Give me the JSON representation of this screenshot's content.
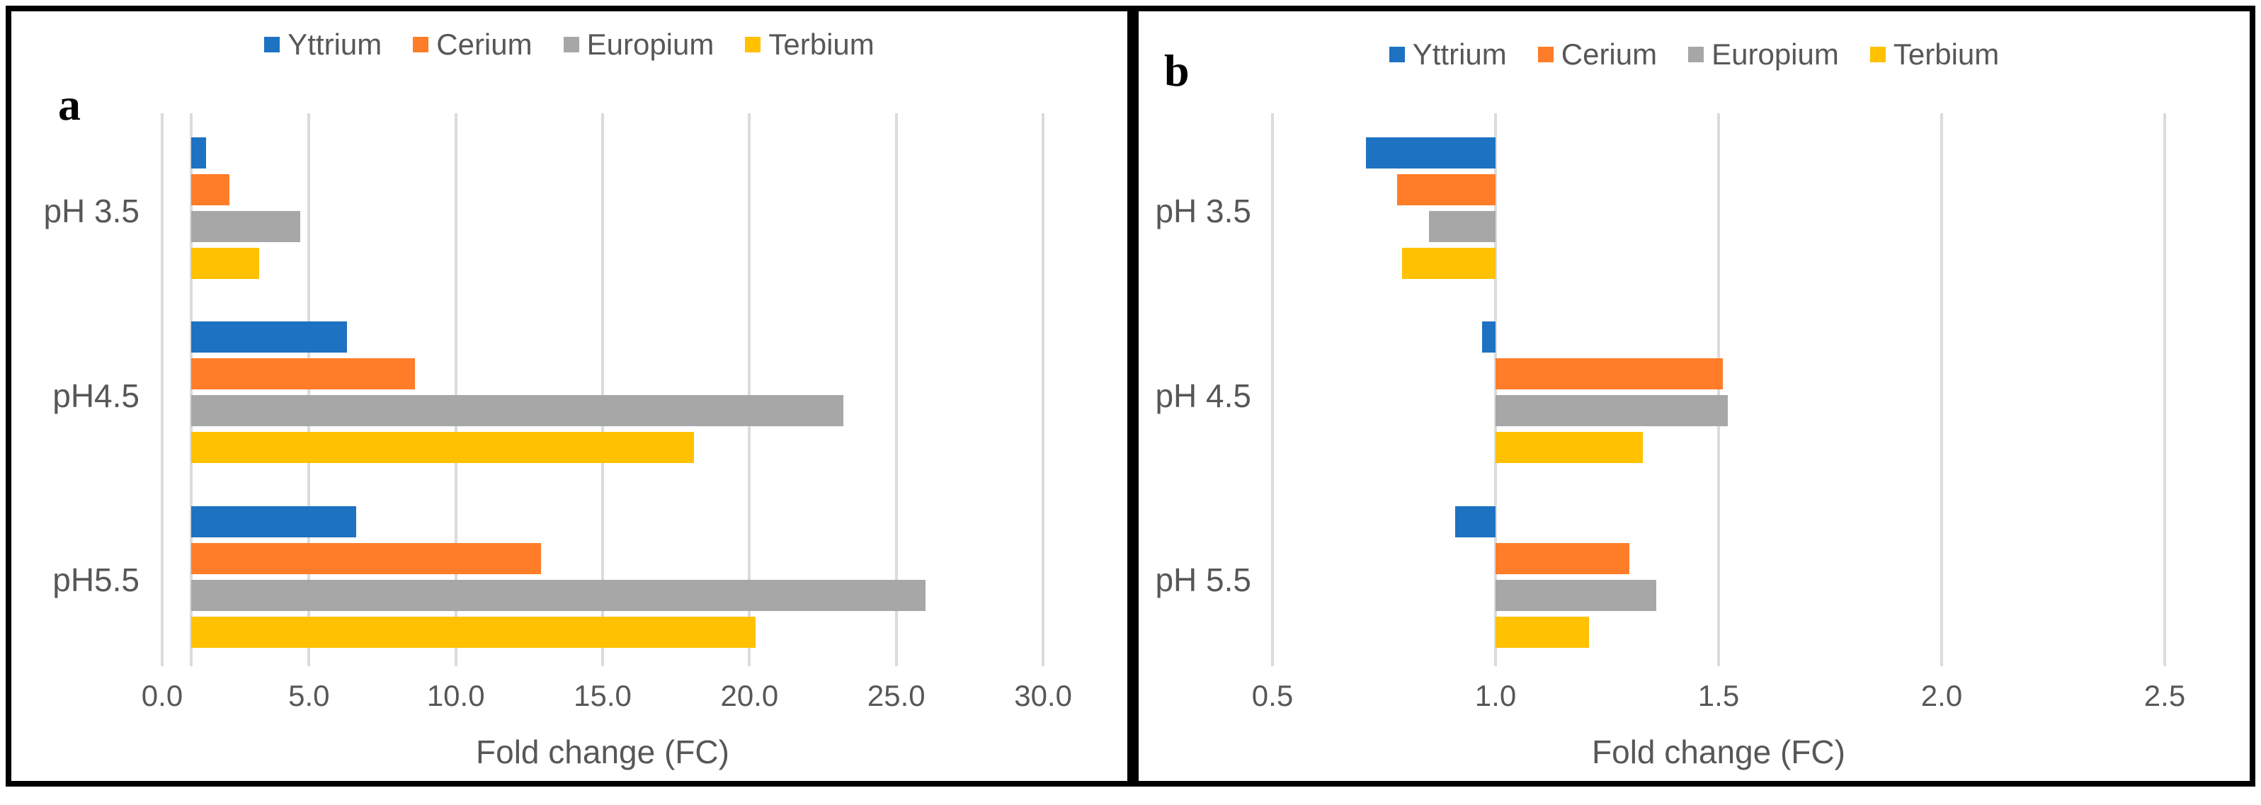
{
  "colors": {
    "yttrium": "#1E72C2",
    "cerium": "#FF7D29",
    "europium": "#A7A7A7",
    "terbium": "#FFC100",
    "gridline": "#DBDBDB",
    "axis_text": "#575757",
    "panel_border": "#000000"
  },
  "chart_data": [
    {
      "panel": "a",
      "type": "bar",
      "orientation": "horizontal",
      "title": "",
      "xlabel": "Fold change (FC)",
      "ylabel": "",
      "grid": true,
      "legend_position": "top",
      "bar_baseline": 1.0,
      "xlim": [
        0.0,
        30.0
      ],
      "xticks": [
        "0.0",
        "5.0",
        "10.0",
        "15.0",
        "20.0",
        "25.0",
        "30.0"
      ],
      "categories": [
        "pH 3.5",
        "pH4.5",
        "pH5.5"
      ],
      "series": [
        {
          "name": "Yttrium",
          "color": "#1E72C2",
          "values": [
            1.5,
            6.3,
            6.6
          ]
        },
        {
          "name": "Cerium",
          "color": "#FF7D29",
          "values": [
            2.3,
            8.6,
            12.9
          ]
        },
        {
          "name": "Europium",
          "color": "#A7A7A7",
          "values": [
            4.7,
            23.2,
            26.0
          ]
        },
        {
          "name": "Terbium",
          "color": "#FFC100",
          "values": [
            3.3,
            18.1,
            20.2
          ]
        }
      ]
    },
    {
      "panel": "b",
      "type": "bar",
      "orientation": "horizontal",
      "title": "",
      "xlabel": "Fold change (FC)",
      "ylabel": "",
      "grid": true,
      "legend_position": "top",
      "bar_baseline": 1.0,
      "xlim": [
        0.5,
        2.5
      ],
      "xticks": [
        "0.5",
        "1.0",
        "1.5",
        "2.0",
        "2.5"
      ],
      "categories": [
        "pH 3.5",
        "pH 4.5",
        "pH 5.5"
      ],
      "series": [
        {
          "name": "Yttrium",
          "color": "#1E72C2",
          "values": [
            0.71,
            0.97,
            0.91
          ]
        },
        {
          "name": "Cerium",
          "color": "#FF7D29",
          "values": [
            0.78,
            1.51,
            1.3
          ]
        },
        {
          "name": "Europium",
          "color": "#A7A7A7",
          "values": [
            0.85,
            1.52,
            1.36
          ]
        },
        {
          "name": "Terbium",
          "color": "#FFC100",
          "values": [
            0.79,
            1.33,
            1.21
          ]
        }
      ]
    }
  ]
}
